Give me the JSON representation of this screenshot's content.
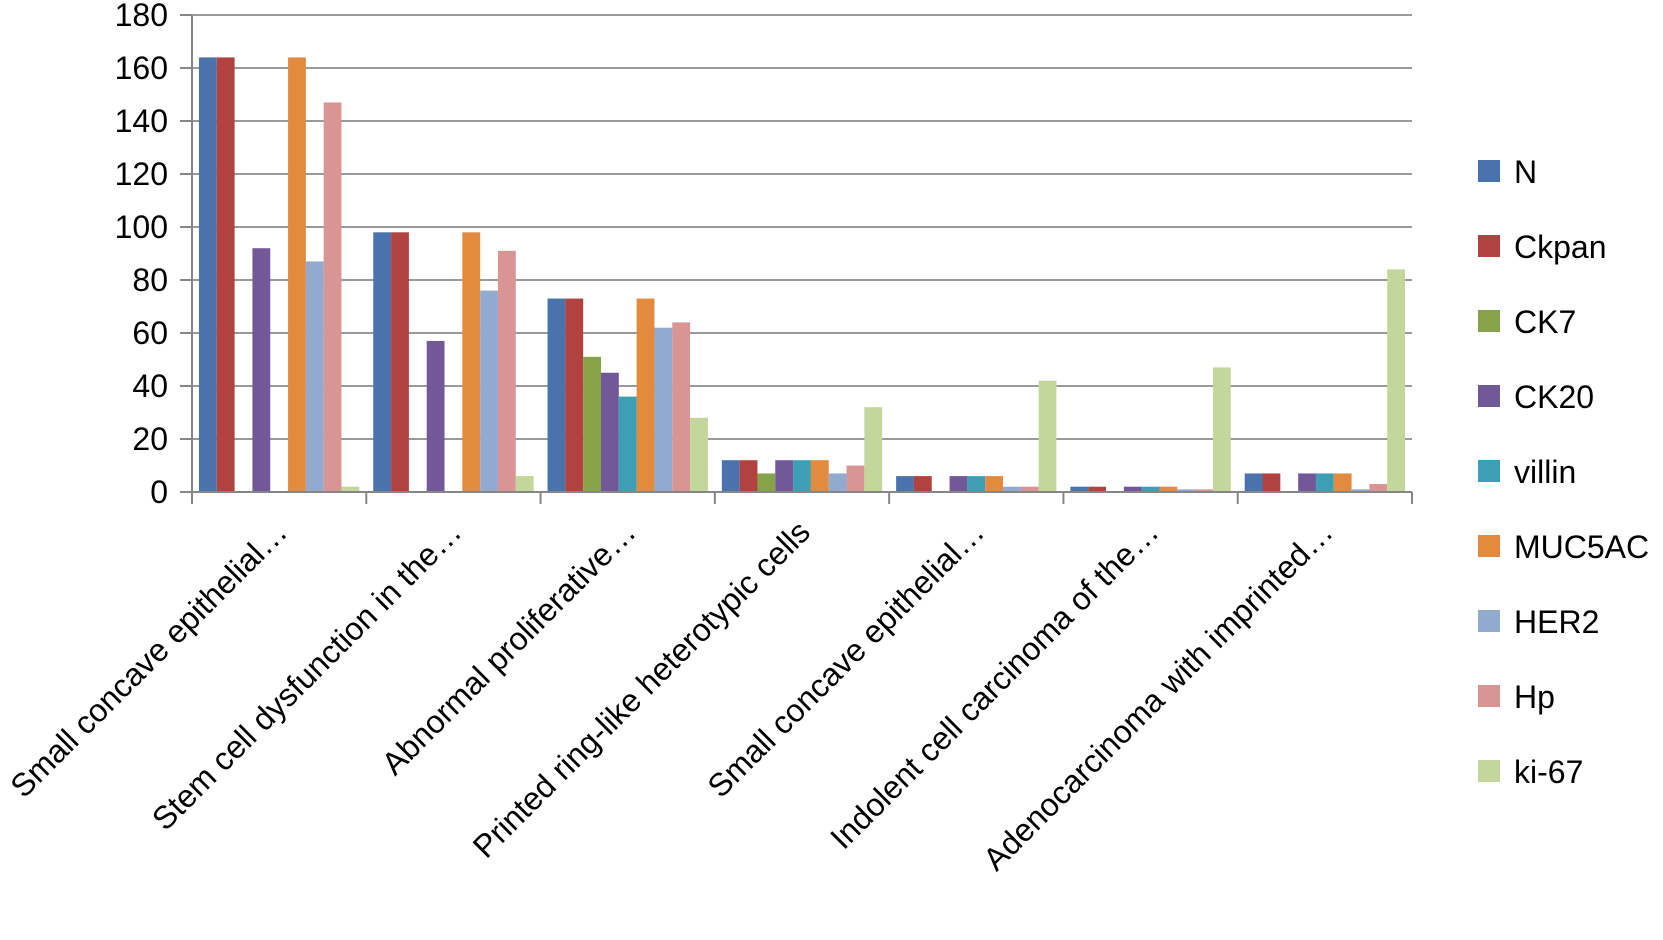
{
  "chart_data": {
    "type": "bar",
    "categories": [
      "Small concave epithelial…",
      "Stem cell dysfunction in the…",
      "Abnormal proliferative…",
      "Printed ring-like heterotypic cells",
      "Small concave epithelial…",
      "Indolent cell carcinoma of the…",
      "Adenocarcinoma with imprinted…"
    ],
    "series": [
      {
        "name": "N",
        "color": "#4A73AE",
        "values": [
          164,
          98,
          73,
          12,
          6,
          2,
          7
        ]
      },
      {
        "name": "Ckpan",
        "color": "#B2423F",
        "values": [
          164,
          98,
          73,
          12,
          6,
          2,
          7
        ]
      },
      {
        "name": "CK7",
        "color": "#87A34A",
        "values": [
          0,
          0,
          51,
          7,
          0,
          0,
          0
        ]
      },
      {
        "name": "CK20",
        "color": "#735897",
        "values": [
          92,
          57,
          45,
          12,
          6,
          2,
          7
        ]
      },
      {
        "name": "villin",
        "color": "#3C9FB5",
        "values": [
          0,
          0,
          36,
          12,
          6,
          2,
          7
        ]
      },
      {
        "name": "MUC5AC",
        "color": "#E38A3F",
        "values": [
          164,
          98,
          73,
          12,
          6,
          2,
          7
        ]
      },
      {
        "name": "HER2",
        "color": "#93AACF",
        "values": [
          87,
          76,
          62,
          7,
          2,
          1,
          1
        ]
      },
      {
        "name": "Hp",
        "color": "#D99594",
        "values": [
          147,
          91,
          64,
          10,
          2,
          1,
          3
        ]
      },
      {
        "name": "ki-67",
        "color": "#C3D69B",
        "values": [
          2,
          6,
          28,
          32,
          42,
          47,
          84
        ]
      }
    ],
    "title": "",
    "xlabel": "",
    "ylabel": "",
    "ylim": [
      0,
      180
    ],
    "yticks": [
      "0",
      "20",
      "40",
      "60",
      "80",
      "100",
      "120",
      "140",
      "160",
      "180"
    ],
    "grid": true,
    "legend_position": "right"
  }
}
